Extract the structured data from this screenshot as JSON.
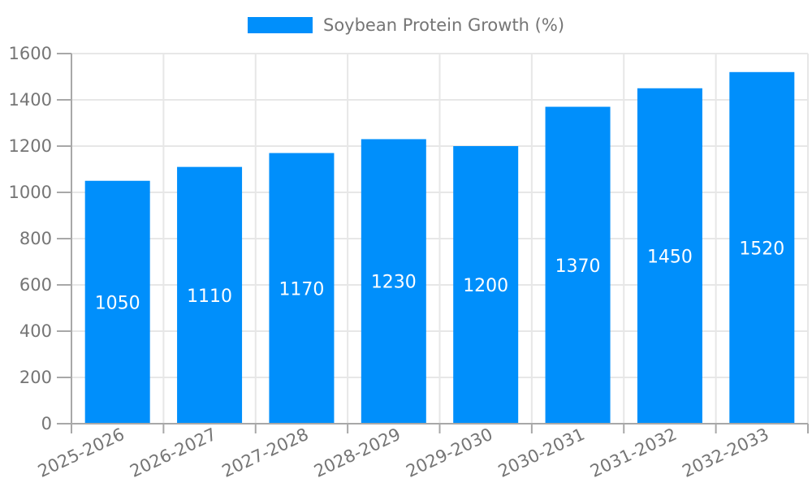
{
  "chart_data": {
    "type": "bar",
    "series_name": "Soybean Protein Growth (%)",
    "categories": [
      "2025-2026",
      "2026-2027",
      "2027-2028",
      "2028-2029",
      "2029-2030",
      "2030-2031",
      "2031-2032",
      "2032-2033"
    ],
    "values": [
      1050,
      1110,
      1170,
      1230,
      1200,
      1370,
      1450,
      1520
    ],
    "ylim": [
      0,
      1600
    ],
    "yticks": [
      0,
      200,
      400,
      600,
      800,
      1000,
      1200,
      1400,
      1600
    ],
    "xlabel": "",
    "ylabel": "",
    "grid": true,
    "legend_position": "top",
    "value_labels_shown": true,
    "colors": {
      "bar": "#008FFB",
      "value_label": "#ffffff",
      "axis_label": "#757575",
      "legend_label": "#757575",
      "grid_line": "#e7e7e7",
      "axis_line": "#a8a8a8"
    }
  }
}
